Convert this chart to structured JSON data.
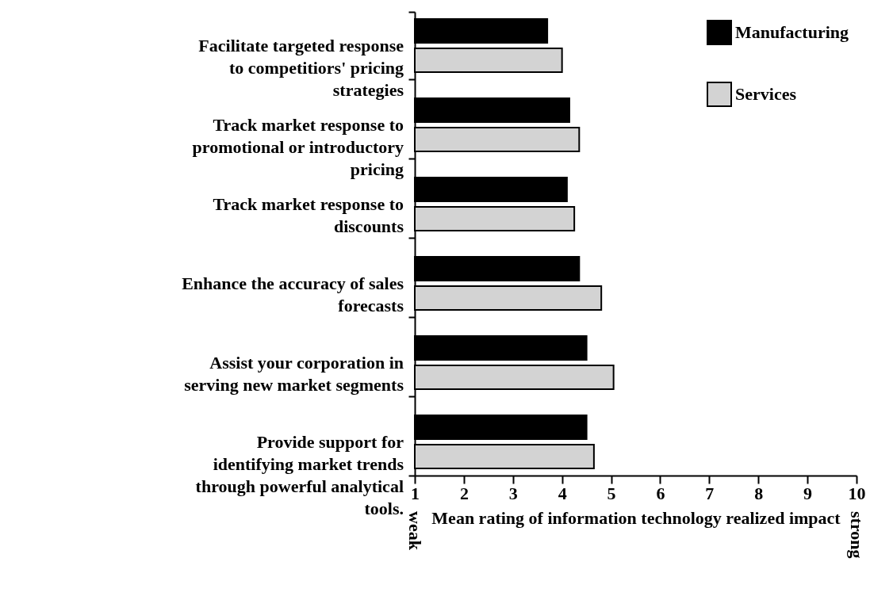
{
  "chart_data": {
    "type": "bar",
    "orientation": "horizontal",
    "xlabel": "Mean rating of information technology realized impact",
    "categories": [
      "Facilitate targeted response to competitiors' pricing strategies",
      "Track market response to promotional or introductory pricing",
      "Track market response to discounts",
      "Enhance the accuracy of sales forecasts",
      "Assist your corporation in serving new market segments",
      "Provide support for identifying market trends through powerful analytical tools."
    ],
    "series": [
      {
        "name": "Manufacturing",
        "color": "#000000",
        "values": [
          3.7,
          4.15,
          4.1,
          4.35,
          4.5,
          4.5
        ]
      },
      {
        "name": "Services",
        "color": "#d3d3d3",
        "values": [
          4.0,
          4.35,
          4.25,
          4.8,
          5.05,
          4.65
        ]
      }
    ],
    "xlim": [
      1,
      10
    ],
    "xticks": [
      1,
      2,
      3,
      4,
      5,
      6,
      7,
      8,
      9,
      10
    ],
    "grid": false,
    "legend": "top right",
    "annotations": [
      "weak",
      "strong"
    ]
  }
}
